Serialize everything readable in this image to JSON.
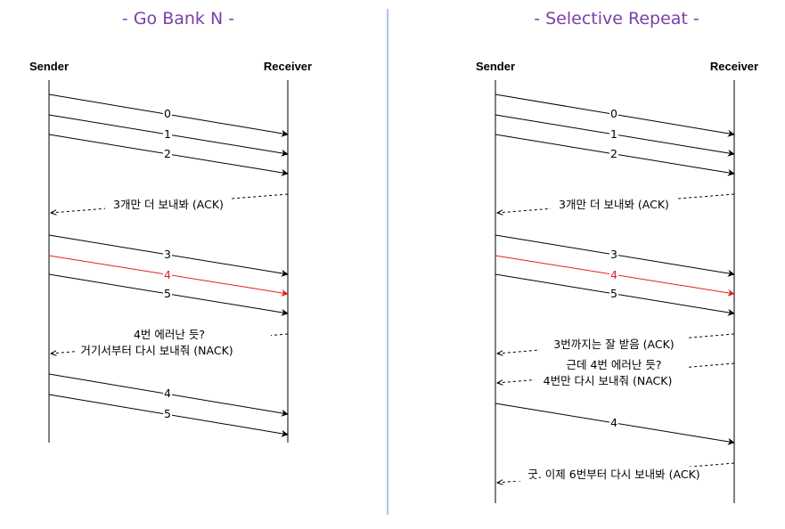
{
  "gbn": {
    "title": "- Go Bank N -",
    "sender": "Sender",
    "receiver": "Receiver",
    "msgs": {
      "m0": "0",
      "m1": "1",
      "m2": "2",
      "ack1": "3개만 더 보내봐 (ACK)",
      "m3": "3",
      "m4": "4",
      "m5": "5",
      "nack_line1": "4번 에러난 듯?",
      "nack_line2": "거기서부터 다시 보내줘 (NACK)",
      "r4": "4",
      "r5": "5"
    }
  },
  "sr": {
    "title": "- Selective Repeat -",
    "sender": "Sender",
    "receiver": "Receiver",
    "msgs": {
      "m0": "0",
      "m1": "1",
      "m2": "2",
      "ack1": "3개만 더 보내봐 (ACK)",
      "m3": "3",
      "m4": "4",
      "m5": "5",
      "ack2": "3번까지는 잘 받음 (ACK)",
      "nack_line1": "근데 4번 에러난 듯?",
      "nack_line2": "4번만 다시 보내줘 (NACK)",
      "r4": "4",
      "ack3": "굿. 이제 6번부터 다시 보내봐 (ACK)"
    }
  },
  "colors": {
    "title": "#7a3fa8",
    "error_arrow": "#e0211b",
    "divider": "#6a86d8"
  }
}
